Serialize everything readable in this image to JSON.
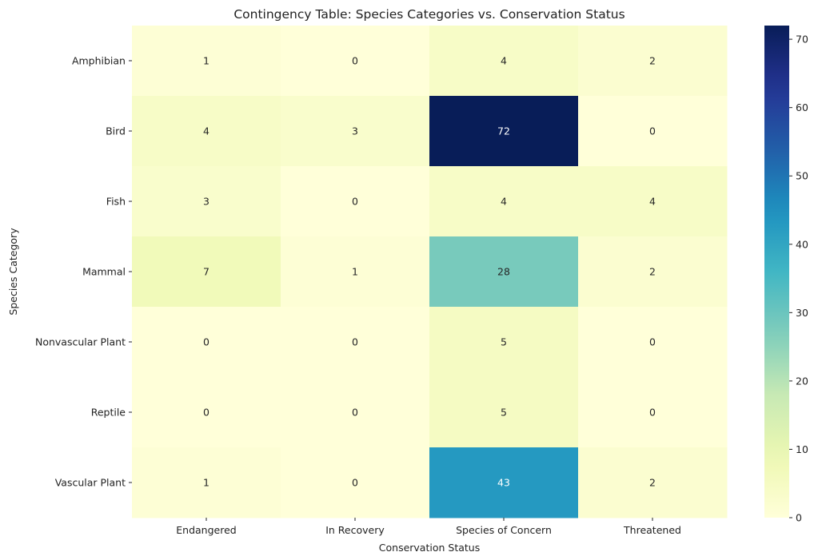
{
  "chart_data": {
    "type": "heatmap",
    "title": "Contingency Table: Species Categories vs. Conservation Status",
    "xlabel": "Conservation Status",
    "ylabel": "Species Category",
    "columns": [
      "Endangered",
      "In Recovery",
      "Species of Concern",
      "Threatened"
    ],
    "rows": [
      "Amphibian",
      "Bird",
      "Fish",
      "Mammal",
      "Nonvascular Plant",
      "Reptile",
      "Vascular Plant"
    ],
    "values": [
      [
        1,
        0,
        4,
        2
      ],
      [
        4,
        3,
        72,
        0
      ],
      [
        3,
        0,
        4,
        4
      ],
      [
        7,
        1,
        28,
        2
      ],
      [
        0,
        0,
        5,
        0
      ],
      [
        0,
        0,
        5,
        0
      ],
      [
        1,
        0,
        43,
        2
      ]
    ],
    "colormap": "YlGnBu",
    "colorbar": {
      "min": 0,
      "max": 72,
      "ticks": [
        0,
        10,
        20,
        30,
        40,
        50,
        60,
        70
      ]
    },
    "annotations": true,
    "grid": false
  }
}
